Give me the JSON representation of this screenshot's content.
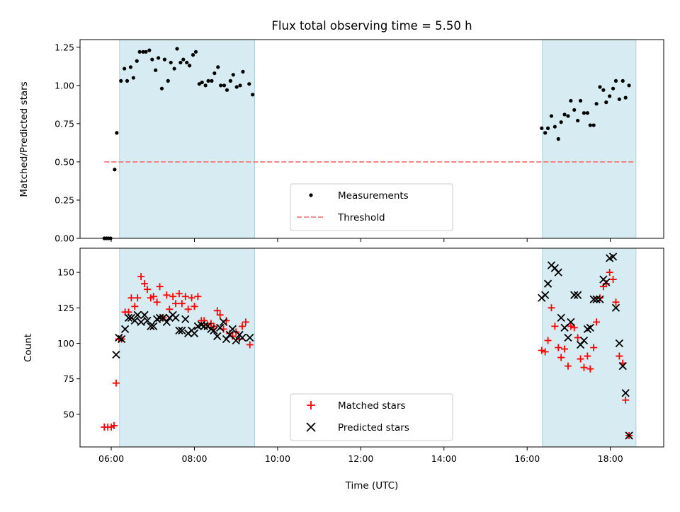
{
  "chart_data": [
    {
      "type": "scatter",
      "title": "Flux total observing time = 5.50 h",
      "xlabel": "",
      "ylabel": "Matched/Predicted stars",
      "xlim": [
        "05:15",
        "19:17"
      ],
      "ylim": [
        0,
        1.3
      ],
      "grid": false,
      "legend_position": "bottom-center",
      "yticks": [
        "0.00",
        "0.25",
        "0.50",
        "0.75",
        "1.00",
        "1.25"
      ],
      "shaded_time_ranges": [
        [
          "06:12",
          "09:27"
        ],
        [
          "16:22",
          "18:37"
        ]
      ],
      "threshold": 0.5,
      "legend": [
        "Measurements",
        "Threshold"
      ],
      "series": [
        {
          "name": "Measurements",
          "color": "#000000",
          "marker": "dot",
          "points": [
            [
              "05:50",
              0.0
            ],
            [
              "05:53",
              0.0
            ],
            [
              "05:56",
              0.0
            ],
            [
              "05:59",
              0.0
            ],
            [
              "06:05",
              0.45
            ],
            [
              "06:08",
              0.69
            ],
            [
              "06:14",
              1.03
            ],
            [
              "06:19",
              1.11
            ],
            [
              "06:23",
              1.03
            ],
            [
              "06:28",
              1.12
            ],
            [
              "06:32",
              1.05
            ],
            [
              "06:37",
              1.16
            ],
            [
              "06:41",
              1.22
            ],
            [
              "06:46",
              1.22
            ],
            [
              "06:50",
              1.22
            ],
            [
              "06:55",
              1.23
            ],
            [
              "06:59",
              1.17
            ],
            [
              "07:04",
              1.1
            ],
            [
              "07:08",
              1.18
            ],
            [
              "07:13",
              0.98
            ],
            [
              "07:17",
              1.17
            ],
            [
              "07:22",
              1.03
            ],
            [
              "07:26",
              1.15
            ],
            [
              "07:31",
              1.11
            ],
            [
              "07:35",
              1.24
            ],
            [
              "07:40",
              1.15
            ],
            [
              "07:44",
              1.17
            ],
            [
              "07:49",
              1.15
            ],
            [
              "07:53",
              1.13
            ],
            [
              "07:58",
              1.2
            ],
            [
              "08:02",
              1.22
            ],
            [
              "08:07",
              1.01
            ],
            [
              "08:11",
              1.02
            ],
            [
              "08:16",
              1.0
            ],
            [
              "08:20",
              1.03
            ],
            [
              "08:25",
              1.03
            ],
            [
              "08:29",
              1.08
            ],
            [
              "08:34",
              1.12
            ],
            [
              "08:38",
              1.0
            ],
            [
              "08:43",
              1.0
            ],
            [
              "08:47",
              0.97
            ],
            [
              "08:52",
              1.03
            ],
            [
              "08:56",
              1.07
            ],
            [
              "09:01",
              0.99
            ],
            [
              "09:06",
              1.0
            ],
            [
              "09:10",
              1.09
            ],
            [
              "09:19",
              1.01
            ],
            [
              "09:24",
              0.94
            ],
            [
              "16:21",
              0.72
            ],
            [
              "16:26",
              0.69
            ],
            [
              "16:30",
              0.72
            ],
            [
              "16:35",
              0.8
            ],
            [
              "16:40",
              0.73
            ],
            [
              "16:45",
              0.65
            ],
            [
              "16:49",
              0.76
            ],
            [
              "16:54",
              0.81
            ],
            [
              "16:59",
              0.8
            ],
            [
              "17:03",
              0.9
            ],
            [
              "17:08",
              0.84
            ],
            [
              "17:13",
              0.77
            ],
            [
              "17:17",
              0.9
            ],
            [
              "17:22",
              0.82
            ],
            [
              "17:27",
              0.82
            ],
            [
              "17:31",
              0.74
            ],
            [
              "17:36",
              0.74
            ],
            [
              "17:40",
              0.88
            ],
            [
              "17:45",
              0.99
            ],
            [
              "17:50",
              0.97
            ],
            [
              "17:54",
              0.89
            ],
            [
              "17:59",
              0.93
            ],
            [
              "18:04",
              0.98
            ],
            [
              "18:08",
              1.03
            ],
            [
              "18:13",
              0.91
            ],
            [
              "18:18",
              1.03
            ],
            [
              "18:22",
              0.92
            ],
            [
              "18:27",
              1.0
            ]
          ]
        },
        {
          "name": "Threshold",
          "color": "#f08080",
          "style": "dashed",
          "points": [
            [
              "05:50",
              0.5
            ],
            [
              "18:37",
              0.5
            ]
          ]
        }
      ]
    },
    {
      "type": "scatter",
      "title": "",
      "xlabel": "Time (UTC)",
      "ylabel": "Count",
      "xlim": [
        "05:15",
        "19:17"
      ],
      "ylim": [
        27,
        167
      ],
      "grid": false,
      "legend_position": "bottom-center",
      "yticks": [
        "50",
        "75",
        "100",
        "125",
        "150"
      ],
      "xticks": [
        "06:00",
        "08:00",
        "10:00",
        "12:00",
        "14:00",
        "16:00",
        "18:00"
      ],
      "shaded_time_ranges": [
        [
          "06:12",
          "09:27"
        ],
        [
          "16:22",
          "18:37"
        ]
      ],
      "legend": [
        "Matched stars",
        "Predicted stars"
      ],
      "series": [
        {
          "name": "Matched stars",
          "color": "#ff0000",
          "marker": "plus",
          "points": [
            [
              "05:50",
              41
            ],
            [
              "05:55",
              41
            ],
            [
              "06:00",
              41
            ],
            [
              "06:04",
              42
            ],
            [
              "06:07",
              72
            ],
            [
              "06:11",
              103
            ],
            [
              "06:15",
              103
            ],
            [
              "06:20",
              122
            ],
            [
              "06:25",
              122
            ],
            [
              "06:29",
              132
            ],
            [
              "06:34",
              126
            ],
            [
              "06:38",
              132
            ],
            [
              "06:43",
              147
            ],
            [
              "06:48",
              142
            ],
            [
              "06:52",
              138
            ],
            [
              "06:57",
              132
            ],
            [
              "07:01",
              133
            ],
            [
              "07:06",
              129
            ],
            [
              "07:10",
              140
            ],
            [
              "07:15",
              118
            ],
            [
              "07:20",
              134
            ],
            [
              "07:24",
              124
            ],
            [
              "07:29",
              133
            ],
            [
              "07:33",
              128
            ],
            [
              "07:38",
              135
            ],
            [
              "07:42",
              128
            ],
            [
              "07:47",
              133
            ],
            [
              "07:51",
              124
            ],
            [
              "07:56",
              132
            ],
            [
              "08:00",
              126
            ],
            [
              "08:05",
              133
            ],
            [
              "08:10",
              116
            ],
            [
              "08:14",
              116
            ],
            [
              "08:19",
              113
            ],
            [
              "08:24",
              114
            ],
            [
              "08:28",
              112
            ],
            [
              "08:33",
              123
            ],
            [
              "08:37",
              120
            ],
            [
              "08:42",
              110
            ],
            [
              "08:46",
              116
            ],
            [
              "08:51",
              107
            ],
            [
              "08:55",
              105
            ],
            [
              "09:00",
              108
            ],
            [
              "09:05",
              103
            ],
            [
              "09:09",
              112
            ],
            [
              "09:14",
              115
            ],
            [
              "09:20",
              99
            ],
            [
              "16:21",
              95
            ],
            [
              "16:26",
              94
            ],
            [
              "16:30",
              102
            ],
            [
              "16:35",
              125
            ],
            [
              "16:40",
              112
            ],
            [
              "16:45",
              97
            ],
            [
              "16:49",
              90
            ],
            [
              "16:54",
              96
            ],
            [
              "16:59",
              84
            ],
            [
              "17:03",
              112
            ],
            [
              "17:08",
              111
            ],
            [
              "17:13",
              104
            ],
            [
              "17:17",
              89
            ],
            [
              "17:22",
              83
            ],
            [
              "17:27",
              91
            ],
            [
              "17:31",
              82
            ],
            [
              "17:36",
              97
            ],
            [
              "17:40",
              115
            ],
            [
              "17:45",
              132
            ],
            [
              "17:50",
              140
            ],
            [
              "17:54",
              142
            ],
            [
              "17:59",
              150
            ],
            [
              "18:04",
              145
            ],
            [
              "18:08",
              129
            ],
            [
              "18:13",
              91
            ],
            [
              "18:18",
              86
            ],
            [
              "18:22",
              60
            ],
            [
              "18:27",
              35
            ]
          ]
        },
        {
          "name": "Predicted stars",
          "color": "#000000",
          "marker": "x",
          "points": [
            [
              "06:07",
              92
            ],
            [
              "06:11",
              104
            ],
            [
              "06:15",
              103
            ],
            [
              "06:20",
              110
            ],
            [
              "06:25",
              118
            ],
            [
              "06:29",
              118
            ],
            [
              "06:34",
              116
            ],
            [
              "06:38",
              120
            ],
            [
              "06:43",
              115
            ],
            [
              "06:48",
              120
            ],
            [
              "06:52",
              116
            ],
            [
              "06:57",
              112
            ],
            [
              "07:01",
              112
            ],
            [
              "07:06",
              117
            ],
            [
              "07:10",
              118
            ],
            [
              "07:15",
              118
            ],
            [
              "07:20",
              115
            ],
            [
              "07:24",
              118
            ],
            [
              "07:29",
              120
            ],
            [
              "07:33",
              118
            ],
            [
              "07:38",
              109
            ],
            [
              "07:42",
              109
            ],
            [
              "07:47",
              117
            ],
            [
              "07:51",
              107
            ],
            [
              "07:56",
              109
            ],
            [
              "08:00",
              107
            ],
            [
              "08:05",
              112
            ],
            [
              "08:10",
              113
            ],
            [
              "08:14",
              112
            ],
            [
              "08:19",
              112
            ],
            [
              "08:24",
              110
            ],
            [
              "08:28",
              109
            ],
            [
              "08:33",
              105
            ],
            [
              "08:37",
              111
            ],
            [
              "08:42",
              115
            ],
            [
              "08:46",
              103
            ],
            [
              "08:51",
              106
            ],
            [
              "08:55",
              110
            ],
            [
              "09:00",
              102
            ],
            [
              "09:05",
              106
            ],
            [
              "09:09",
              104
            ],
            [
              "09:20",
              104
            ],
            [
              "16:21",
              132
            ],
            [
              "16:26",
              134
            ],
            [
              "16:30",
              142
            ],
            [
              "16:35",
              155
            ],
            [
              "16:40",
              153
            ],
            [
              "16:45",
              150
            ],
            [
              "16:49",
              118
            ],
            [
              "16:54",
              111
            ],
            [
              "16:59",
              104
            ],
            [
              "17:03",
              115
            ],
            [
              "17:08",
              134
            ],
            [
              "17:13",
              134
            ],
            [
              "17:17",
              99
            ],
            [
              "17:22",
              102
            ],
            [
              "17:27",
              110
            ],
            [
              "17:31",
              111
            ],
            [
              "17:36",
              131
            ],
            [
              "17:40",
              131
            ],
            [
              "17:45",
              131
            ],
            [
              "17:50",
              145
            ],
            [
              "17:54",
              143
            ],
            [
              "17:59",
              160
            ],
            [
              "18:04",
              161
            ],
            [
              "18:08",
              125
            ],
            [
              "18:13",
              100
            ],
            [
              "18:18",
              84
            ],
            [
              "18:22",
              65
            ],
            [
              "18:27",
              35
            ]
          ]
        }
      ]
    }
  ]
}
